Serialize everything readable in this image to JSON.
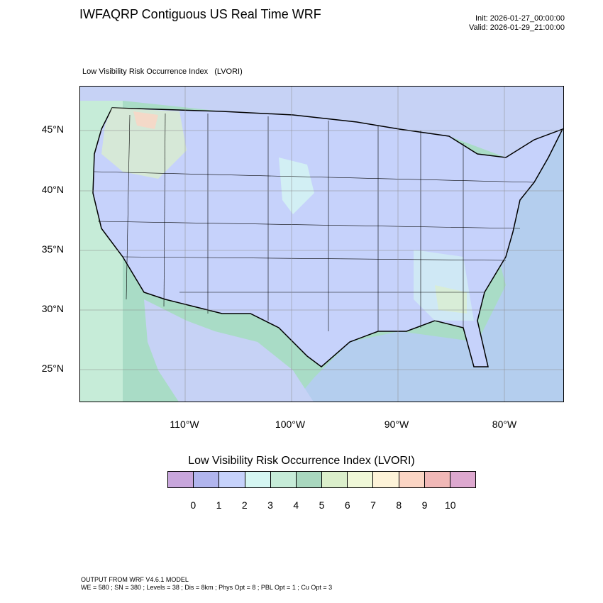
{
  "header": {
    "title": "IWFAQRP Contiguous US Real Time WRF",
    "init": "Init: 2026-01-27_00:00:00",
    "valid": "Valid: 2026-01-29_21:00:00"
  },
  "map": {
    "subtitle": "Low Visibility Risk Occurrence Index   (LVORI)",
    "lat_labels": [
      "45°N",
      "40°N",
      "35°N",
      "30°N",
      "25°N"
    ],
    "lon_labels": [
      "110°W",
      "100°W",
      "90°W",
      "80°W"
    ],
    "colors": {
      "ocean": "#a9dcc6",
      "land_base": "#c6d2f5",
      "border": "#000000"
    }
  },
  "legend": {
    "title": "Low Visibility Risk Occurrence Index  (LVORI)",
    "labels": [
      "0",
      "1",
      "2",
      "3",
      "4",
      "5",
      "6",
      "7",
      "8",
      "9",
      "10"
    ],
    "colors": [
      "#c8a6dc",
      "#b1b5ee",
      "#c6d2fb",
      "#d5f6f2",
      "#c6ecd8",
      "#a9d8bf",
      "#dbefcb",
      "#f0f8d8",
      "#fdf3d8",
      "#fbd5c4",
      "#f1b8b7",
      "#dda8cf"
    ]
  },
  "footer": {
    "line1": "OUTPUT FROM WRF V4.6.1 MODEL",
    "line2": "WE = 580 ; SN = 380 ; Levels = 38 ; Dis = 8km ; Phys Opt = 8 ; PBL Opt = 1 ; Cu Opt = 3"
  }
}
